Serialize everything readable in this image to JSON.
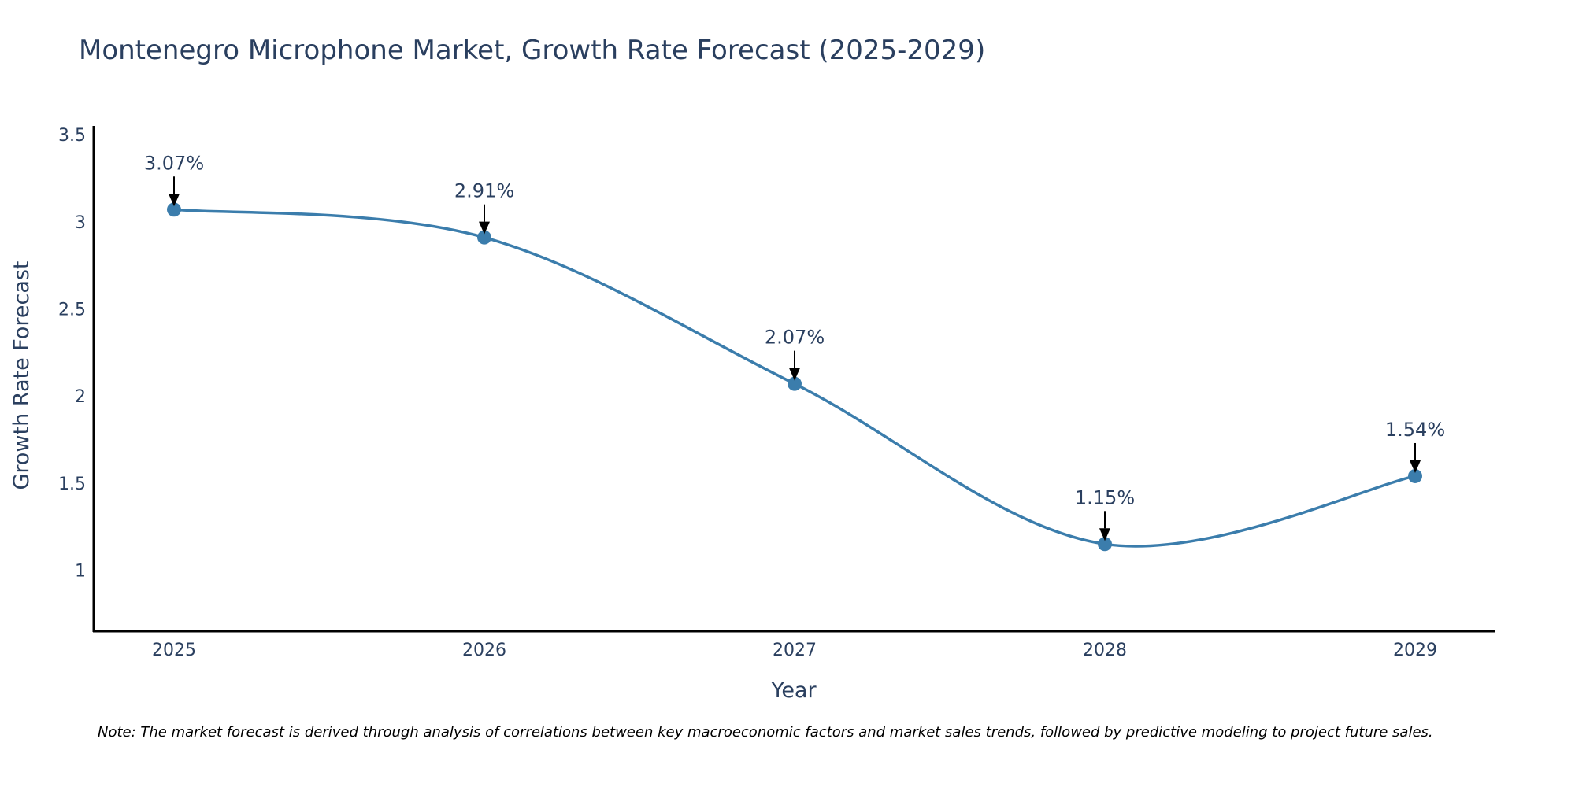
{
  "chart_data": {
    "type": "line",
    "title": "Montenegro Microphone Market, Growth Rate Forecast (2025-2029)",
    "xlabel": "Year",
    "ylabel": "Growth Rate Forecast",
    "categories": [
      "2025",
      "2026",
      "2027",
      "2028",
      "2029"
    ],
    "series": [
      {
        "name": "Growth Rate Forecast",
        "values": [
          3.07,
          2.91,
          2.07,
          1.15,
          1.54
        ],
        "labels": [
          "3.07%",
          "2.91%",
          "2.07%",
          "1.15%",
          "1.54%"
        ]
      }
    ],
    "ylim": [
      0.65,
      3.55
    ],
    "yticks": [
      1,
      1.5,
      2,
      2.5,
      3,
      3.5
    ],
    "ytick_labels": [
      "1",
      "1.5",
      "2",
      "2.5",
      "3",
      "3.5"
    ],
    "grid": false,
    "line_shape": "spline",
    "color": "#3b7dac"
  },
  "note": "Note: The market forecast is derived through analysis of correlations between key macroeconomic factors and market sales trends, followed by predictive modeling to project future sales."
}
